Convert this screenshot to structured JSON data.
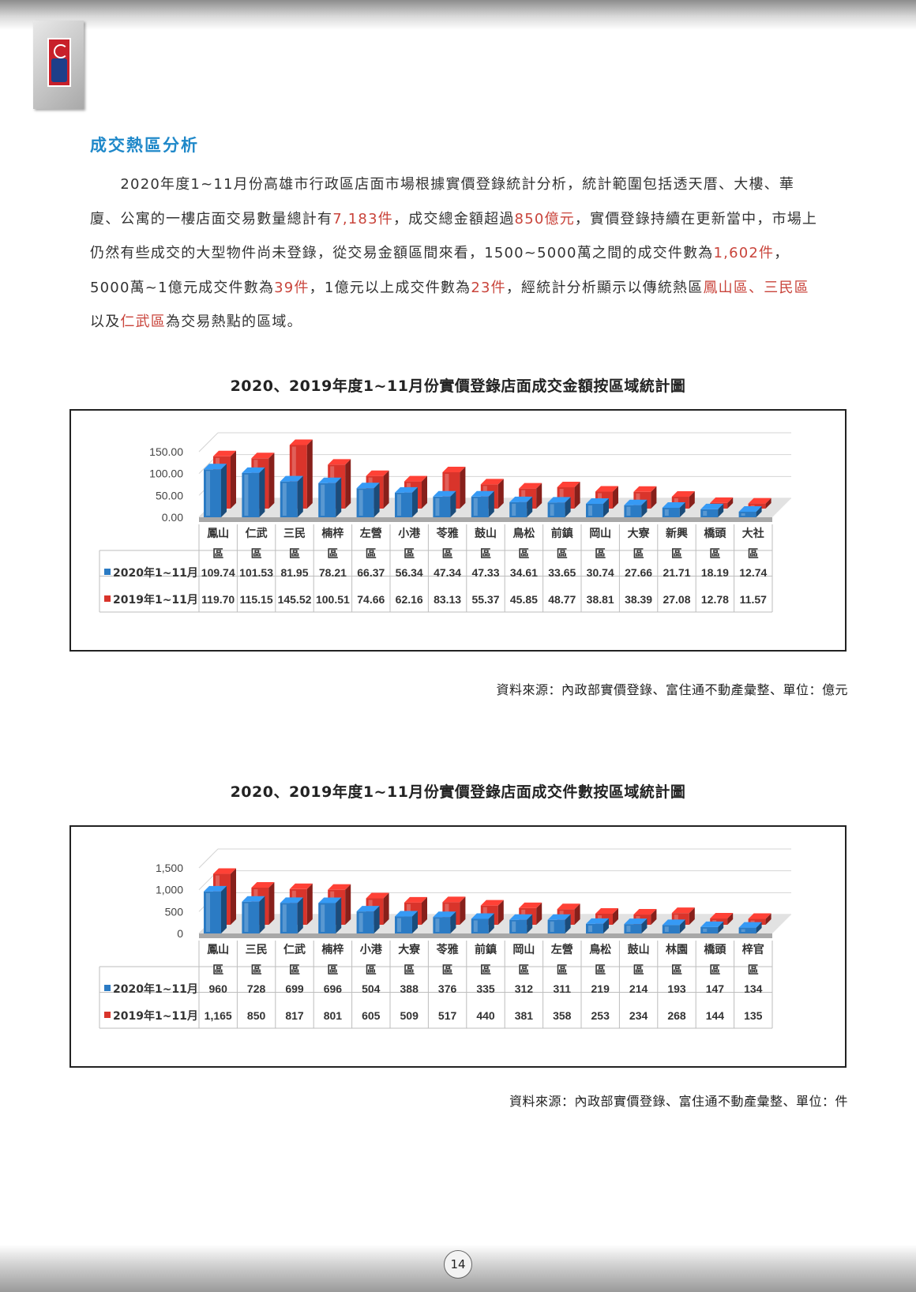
{
  "page_number": "14",
  "section_title": "成交熱區分析",
  "paragraph": [
    {
      "t": "2020年度1~11月份高雄市行政區店面市場根據實價登錄統計分析，統計範圍包括透天厝、大樓、華廈、公寓的一樓店面交易數量總計有",
      "hl": false
    },
    {
      "t": "7,183件",
      "hl": true
    },
    {
      "t": "，成交總金額超過",
      "hl": false
    },
    {
      "t": "850億元",
      "hl": true
    },
    {
      "t": "，實價登錄持續在更新當中，市場上仍然有些成交的大型物件尚未登錄，從交易金額區間來看，1500~5000萬之間的成交件數為",
      "hl": false
    },
    {
      "t": "1,602件",
      "hl": true
    },
    {
      "t": "，5000萬~1億元成交件數為",
      "hl": false
    },
    {
      "t": "39件",
      "hl": true
    },
    {
      "t": "，1億元以上成交件數為",
      "hl": false
    },
    {
      "t": "23件",
      "hl": true
    },
    {
      "t": "，經統計分析顯示以傳統熱區",
      "hl": false
    },
    {
      "t": "鳳山區、三民區",
      "hl": true
    },
    {
      "t": "以及",
      "hl": false
    },
    {
      "t": "仁武區",
      "hl": true
    },
    {
      "t": "為交易熱點的區域。",
      "hl": false
    }
  ],
  "colors": {
    "series_2020": "#2b7bc4",
    "series_2019": "#d9342b",
    "highlight": "#c9443b",
    "title": "#1f88c9"
  },
  "chart_data": [
    {
      "type": "bar",
      "title": "2020、2019年度1~11月份實價登錄店面成交金額按區域統計圖",
      "source": "資料來源：內政部實價登錄、富住通不動產彙整、單位：億元",
      "categories": [
        [
          "鳳山",
          "區"
        ],
        [
          "仁武",
          "區"
        ],
        [
          "三民",
          "區"
        ],
        [
          "楠梓",
          "區"
        ],
        [
          "左營",
          "區"
        ],
        [
          "小港",
          "區"
        ],
        [
          "苓雅",
          "區"
        ],
        [
          "鼓山",
          "區"
        ],
        [
          "鳥松",
          "區"
        ],
        [
          "前鎮",
          "區"
        ],
        [
          "岡山",
          "區"
        ],
        [
          "大寮",
          "區"
        ],
        [
          "新興",
          "區"
        ],
        [
          "橋頭",
          "區"
        ],
        [
          "大社",
          "區"
        ]
      ],
      "series": [
        {
          "name": "2020年1~11月",
          "values": [
            109.74,
            101.53,
            81.95,
            78.21,
            66.37,
            56.34,
            47.34,
            47.33,
            34.61,
            33.65,
            30.74,
            27.66,
            21.71,
            18.19,
            12.74
          ],
          "labels": [
            "109.74",
            "101.53",
            "81.95",
            "78.21",
            "66.37",
            "56.34",
            "47.34",
            "47.33",
            "34.61",
            "33.65",
            "30.74",
            "27.66",
            "21.71",
            "18.19",
            "12.74"
          ]
        },
        {
          "name": "2019年1~11月",
          "values": [
            119.7,
            115.15,
            145.52,
            100.51,
            74.66,
            62.16,
            83.13,
            55.37,
            45.85,
            48.77,
            38.81,
            38.39,
            27.08,
            12.78,
            11.57
          ],
          "labels": [
            "119.70",
            "115.15",
            "145.52",
            "100.51",
            "74.66",
            "62.16",
            "83.13",
            "55.37",
            "45.85",
            "48.77",
            "38.81",
            "38.39",
            "27.08",
            "12.78",
            "11.57"
          ]
        }
      ],
      "ylim": [
        0,
        150
      ],
      "yticks": [
        "150.00",
        "100.00",
        "50.00",
        "0.00"
      ],
      "ytick_values": [
        150,
        100,
        50,
        0
      ],
      "legend": "data-table",
      "grid": true
    },
    {
      "type": "bar",
      "title": "2020、2019年度1~11月份實價登錄店面成交件數按區域統計圖",
      "source": "資料來源：內政部實價登錄、富住通不動產彙整、單位：件",
      "categories": [
        [
          "鳳山",
          "區"
        ],
        [
          "三民",
          "區"
        ],
        [
          "仁武",
          "區"
        ],
        [
          "楠梓",
          "區"
        ],
        [
          "小港",
          "區"
        ],
        [
          "大寮",
          "區"
        ],
        [
          "苓雅",
          "區"
        ],
        [
          "前鎮",
          "區"
        ],
        [
          "岡山",
          "區"
        ],
        [
          "左營",
          "區"
        ],
        [
          "鳥松",
          "區"
        ],
        [
          "鼓山",
          "區"
        ],
        [
          "林園",
          "區"
        ],
        [
          "橋頭",
          "區"
        ],
        [
          "梓官",
          "區"
        ]
      ],
      "series": [
        {
          "name": "2020年1~11月",
          "values": [
            960,
            728,
            699,
            696,
            504,
            388,
            376,
            335,
            312,
            311,
            219,
            214,
            193,
            147,
            134
          ],
          "labels": [
            "960",
            "728",
            "699",
            "696",
            "504",
            "388",
            "376",
            "335",
            "312",
            "311",
            "219",
            "214",
            "193",
            "147",
            "134"
          ]
        },
        {
          "name": "2019年1~11月",
          "values": [
            1165,
            850,
            817,
            801,
            605,
            509,
            517,
            440,
            381,
            358,
            253,
            234,
            268,
            144,
            135
          ],
          "labels": [
            "1,165",
            "850",
            "817",
            "801",
            "605",
            "509",
            "517",
            "440",
            "381",
            "358",
            "253",
            "234",
            "268",
            "144",
            "135"
          ]
        }
      ],
      "ylim": [
        0,
        1500
      ],
      "yticks": [
        "1,500",
        "1,000",
        "500",
        "0"
      ],
      "ytick_values": [
        1500,
        1000,
        500,
        0
      ],
      "legend": "data-table",
      "grid": true
    }
  ]
}
